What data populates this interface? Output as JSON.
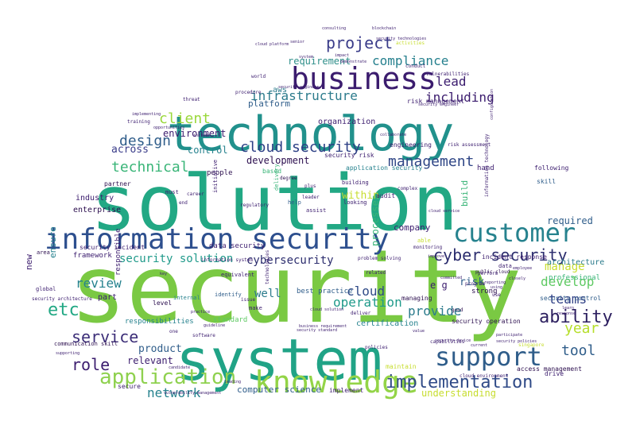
{
  "background_color": "#ffffff",
  "palette": [
    "#2c0f4f",
    "#3b1c6e",
    "#2f3f85",
    "#30588b",
    "#22787d",
    "#1f9a8a",
    "#3ab578",
    "#5ec962",
    "#93d447",
    "#c7dd2f"
  ],
  "words": [
    {
      "text": "security",
      "color": "#7ac943"
    },
    {
      "text": "solution",
      "color": "#22a884"
    },
    {
      "text": "system",
      "color": "#20a386"
    },
    {
      "text": "technology",
      "color": "#21918c"
    },
    {
      "text": "information security",
      "color": "#2d4f8e"
    },
    {
      "text": "business",
      "color": "#3b1c6e"
    },
    {
      "text": "customer",
      "color": "#26828e"
    },
    {
      "text": "knowledge",
      "color": "#93d447"
    },
    {
      "text": "support",
      "color": "#2f5d8a"
    },
    {
      "text": "application",
      "color": "#8fd14f"
    },
    {
      "text": "implementation",
      "color": "#2f4a87"
    },
    {
      "text": "cyber security",
      "color": "#2c2d6e"
    },
    {
      "text": "project",
      "color": "#3b3d8a"
    },
    {
      "text": "compliance",
      "color": "#26808e"
    },
    {
      "text": "management",
      "color": "#2f4686"
    },
    {
      "text": "technical",
      "color": "#3ab578"
    },
    {
      "text": "design",
      "color": "#2f5d8a"
    },
    {
      "text": "cloud security",
      "color": "#2c3f85"
    },
    {
      "text": "client",
      "color": "#9ad83b"
    },
    {
      "text": "infrastructure",
      "color": "#2c7b8c"
    },
    {
      "text": "ability",
      "color": "#2c1f5f"
    },
    {
      "text": "service",
      "color": "#3c2e78"
    },
    {
      "text": "role",
      "color": "#3b1c6e"
    },
    {
      "text": "teams",
      "color": "#2f3f85"
    },
    {
      "text": "develop",
      "color": "#5ec962"
    },
    {
      "text": "year",
      "color": "#b6de2b"
    },
    {
      "text": "tool",
      "color": "#2f5d8a"
    },
    {
      "text": "network",
      "color": "#26828e"
    },
    {
      "text": "review",
      "color": "#26828e"
    },
    {
      "text": "including",
      "color": "#3b1c6e"
    },
    {
      "text": "lead",
      "color": "#3b1c6e"
    },
    {
      "text": "etc",
      "color": "#22a884"
    },
    {
      "text": "provide",
      "color": "#2c7b8c"
    },
    {
      "text": "security solution",
      "color": "#1f9a8a"
    },
    {
      "text": "cybersecurity",
      "color": "#2c2d6e"
    },
    {
      "text": "well",
      "color": "#2c7b8c"
    },
    {
      "text": "cloud",
      "color": "#2f4a87"
    },
    {
      "text": "operation",
      "color": "#1f9a8a"
    },
    {
      "text": "manage",
      "color": "#c7dd2f"
    },
    {
      "text": "required",
      "color": "#2f5d8a"
    },
    {
      "text": "understanding",
      "color": "#c7dd2f"
    },
    {
      "text": "environment",
      "color": "#3b1c6e"
    },
    {
      "text": "requirement",
      "color": "#2f8f8a"
    },
    {
      "text": "product",
      "color": "#2f5d8a"
    },
    {
      "text": "relevant",
      "color": "#3b1c6e"
    },
    {
      "text": "risk",
      "color": "#2f5d8a"
    },
    {
      "text": "within",
      "color": "#c7dd2f"
    },
    {
      "text": "across",
      "color": "#3b3d8a"
    },
    {
      "text": "control",
      "color": "#26828e"
    },
    {
      "text": "development",
      "color": "#2c0f4f"
    },
    {
      "text": "platform",
      "color": "#2f5d8a"
    },
    {
      "text": "company",
      "color": "#3b1c6e"
    },
    {
      "text": "processes",
      "color": "#3ab578"
    },
    {
      "text": "computer science",
      "color": "#2f5d8a"
    },
    {
      "text": "certification",
      "color": "#26828e"
    },
    {
      "text": "architecture",
      "color": "#2c7b8c"
    },
    {
      "text": "industry",
      "color": "#3b1c6e"
    },
    {
      "text": "enterprise",
      "color": "#2c0f4f"
    },
    {
      "text": "ensure",
      "color": "#26828e"
    },
    {
      "text": "new",
      "color": "#3b1c6e"
    },
    {
      "text": "part",
      "color": "#3b1c6e"
    },
    {
      "text": "framework",
      "color": "#3b1c6e"
    },
    {
      "text": "responsibilities",
      "color": "#26828e"
    },
    {
      "text": "standard",
      "color": "#5ec962"
    },
    {
      "text": "data security",
      "color": "#3b1c6e"
    },
    {
      "text": "best practice",
      "color": "#2f5d8a"
    },
    {
      "text": "aws",
      "color": "#2c7b8c"
    },
    {
      "text": "organization",
      "color": "#3b1c6e"
    },
    {
      "text": "build",
      "color": "#3ab578"
    },
    {
      "text": "e g",
      "color": "#3b1c6e"
    },
    {
      "text": "people",
      "color": "#2c0f4f"
    },
    {
      "text": "security risk",
      "color": "#3b1c6e"
    },
    {
      "text": "engineering",
      "color": "#3b1c6e"
    },
    {
      "text": "application security",
      "color": "#26828e"
    },
    {
      "text": "responsible",
      "color": "#3b1c6e"
    },
    {
      "text": "hand",
      "color": "#3b1c6e"
    },
    {
      "text": "security operation",
      "color": "#2c0f4f"
    },
    {
      "text": "risk management",
      "color": "#3b1c6e"
    },
    {
      "text": "strong",
      "color": "#2c0f4f"
    },
    {
      "text": "professional",
      "color": "#3ab578"
    },
    {
      "text": "security incident",
      "color": "#3b1c6e"
    },
    {
      "text": "partner",
      "color": "#2c0f4f"
    },
    {
      "text": "based",
      "color": "#3ab578"
    },
    {
      "text": "managing",
      "color": "#2c0f4f"
    },
    {
      "text": "maintain",
      "color": "#c7dd2f"
    },
    {
      "text": "access management",
      "color": "#2c0f4f"
    },
    {
      "text": "drive",
      "color": "#3b1c6e"
    },
    {
      "text": "implement",
      "color": "#3b1c6e"
    },
    {
      "text": "skill",
      "color": "#2f5d8a"
    },
    {
      "text": "incident response",
      "color": "#3b1c6e"
    },
    {
      "text": "following",
      "color": "#3b1c6e"
    },
    {
      "text": "security control",
      "color": "#2f5d8a"
    },
    {
      "text": "communication skill",
      "color": "#2c0f4f"
    },
    {
      "text": "secure",
      "color": "#3b1c6e"
    },
    {
      "text": "level",
      "color": "#2c0f4f"
    },
    {
      "text": "audit",
      "color": "#3b1c6e"
    },
    {
      "text": "building",
      "color": "#3b1c6e"
    },
    {
      "text": "assist",
      "color": "#3b1c6e"
    },
    {
      "text": "looking",
      "color": "#3b1c6e"
    },
    {
      "text": "help",
      "color": "#2f5d8a"
    },
    {
      "text": "internal",
      "color": "#26828e"
    },
    {
      "text": "identify",
      "color": "#2f5d8a"
    },
    {
      "text": "equivalent",
      "color": "#3b1c6e"
    },
    {
      "text": "area",
      "color": "#2c0f4f"
    },
    {
      "text": "global",
      "color": "#3b1c6e"
    },
    {
      "text": "must",
      "color": "#3b1c6e"
    },
    {
      "text": "training",
      "color": "#3b1c6e"
    },
    {
      "text": "threat",
      "color": "#3b1c6e"
    },
    {
      "text": "procedure",
      "color": "#3b1c6e"
    },
    {
      "text": "world",
      "color": "#3b1c6e"
    },
    {
      "text": "activities",
      "color": "#c7dd2f"
    },
    {
      "text": "vulnerabilities",
      "color": "#3b1c6e"
    },
    {
      "text": "conduct",
      "color": "#3b1c6e"
    },
    {
      "text": "senior",
      "color": "#3b1c6e"
    },
    {
      "text": "plus",
      "color": "#3b1c6e"
    },
    {
      "text": "degree",
      "color": "#2c0f4f"
    },
    {
      "text": "delivery",
      "color": "#3ab578"
    },
    {
      "text": "complex",
      "color": "#3b1c6e"
    },
    {
      "text": "regulatory",
      "color": "#3b1c6e"
    },
    {
      "text": "security architecture",
      "color": "#3b1c6e"
    },
    {
      "text": "capabilities",
      "color": "#3b1c6e"
    },
    {
      "text": "good",
      "color": "#2c0f4f"
    },
    {
      "text": "public cloud",
      "color": "#2c0f4f"
    },
    {
      "text": "program",
      "color": "#3b1c6e"
    },
    {
      "text": "perform",
      "color": "#3b1c6e"
    },
    {
      "text": "cloud environment",
      "color": "#3b1c6e"
    },
    {
      "text": "deliver",
      "color": "#3b1c6e"
    },
    {
      "text": "related",
      "color": "#3b1c6e"
    },
    {
      "text": "problem solving",
      "color": "#3b1c6e"
    },
    {
      "text": "monitoring",
      "color": "#3b1c6e"
    },
    {
      "text": "able",
      "color": "#c7dd2f"
    },
    {
      "text": "end",
      "color": "#3b1c6e"
    },
    {
      "text": "career",
      "color": "#3b1c6e"
    },
    {
      "text": "leader",
      "color": "#3b1c6e"
    },
    {
      "text": "security engineer",
      "color": "#3b1c6e"
    },
    {
      "text": "risk assessment",
      "color": "#3b1c6e"
    },
    {
      "text": "information system",
      "color": "#3b1c6e"
    },
    {
      "text": "candidate",
      "color": "#3b1c6e"
    },
    {
      "text": "participate",
      "color": "#3b1c6e"
    },
    {
      "text": "singapore",
      "color": "#c7dd2f"
    },
    {
      "text": "security policies",
      "color": "#3b1c6e"
    },
    {
      "text": "cloud platform",
      "color": "#3b1c6e"
    },
    {
      "text": "practice",
      "color": "#3b1c6e"
    },
    {
      "text": "opportunities",
      "color": "#3b1c6e"
    },
    {
      "text": "implementing",
      "color": "#3b1c6e"
    },
    {
      "text": "initiative",
      "color": "#3b1c6e"
    },
    {
      "text": "include",
      "color": "#3b1c6e"
    },
    {
      "text": "blockchain",
      "color": "#3b1c6e"
    },
    {
      "text": "consulting",
      "color": "#3b1c6e"
    },
    {
      "text": "security technologies",
      "color": "#3b1c6e"
    },
    {
      "text": "impact",
      "color": "#3b1c6e"
    },
    {
      "text": "demonstrate",
      "color": "#3b1c6e"
    },
    {
      "text": "system",
      "color": "#3b1c6e"
    },
    {
      "text": "collaborate",
      "color": "#3b1c6e"
    },
    {
      "text": "information technology",
      "color": "#3b1c6e"
    },
    {
      "text": "configuration",
      "color": "#3b1c6e"
    },
    {
      "text": "using",
      "color": "#3b1c6e"
    },
    {
      "text": "employee",
      "color": "#3b1c6e"
    },
    {
      "text": "supporting",
      "color": "#3b1c6e"
    },
    {
      "text": "vulnerability management",
      "color": "#3b1c6e"
    },
    {
      "text": "software",
      "color": "#3b1c6e"
    },
    {
      "text": "leading",
      "color": "#3b1c6e"
    },
    {
      "text": "policies",
      "color": "#3b1c6e"
    },
    {
      "text": "committed",
      "color": "#3b1c6e"
    },
    {
      "text": "reporting",
      "color": "#3b1c6e"
    },
    {
      "text": "closely",
      "color": "#3b1c6e"
    },
    {
      "text": "response",
      "color": "#3b1c6e"
    },
    {
      "text": "learn",
      "color": "#3b1c6e"
    },
    {
      "text": "cloud service",
      "color": "#3b1c6e"
    },
    {
      "text": "data",
      "color": "#3b1c6e"
    },
    {
      "text": "key",
      "color": "#3b1c6e"
    },
    {
      "text": "issue",
      "color": "#3b1c6e"
    },
    {
      "text": "make",
      "color": "#3b1c6e"
    },
    {
      "text": "guideline",
      "color": "#3b1c6e"
    },
    {
      "text": "one",
      "color": "#3b1c6e"
    },
    {
      "text": "security standard",
      "color": "#3b1c6e"
    },
    {
      "text": "technologies",
      "color": "#3b1c6e"
    },
    {
      "text": "use",
      "color": "#3b1c6e"
    },
    {
      "text": "improve",
      "color": "#3b1c6e"
    },
    {
      "text": "value",
      "color": "#3b1c6e"
    },
    {
      "text": "current",
      "color": "#3b1c6e"
    },
    {
      "text": "security device",
      "color": "#3b1c6e"
    },
    {
      "text": "cloud solution",
      "color": "#3b1c6e"
    },
    {
      "text": "business requirement",
      "color": "#3b1c6e"
    },
    {
      "text": "security engineer",
      "color": "#3b1c6e"
    }
  ]
}
